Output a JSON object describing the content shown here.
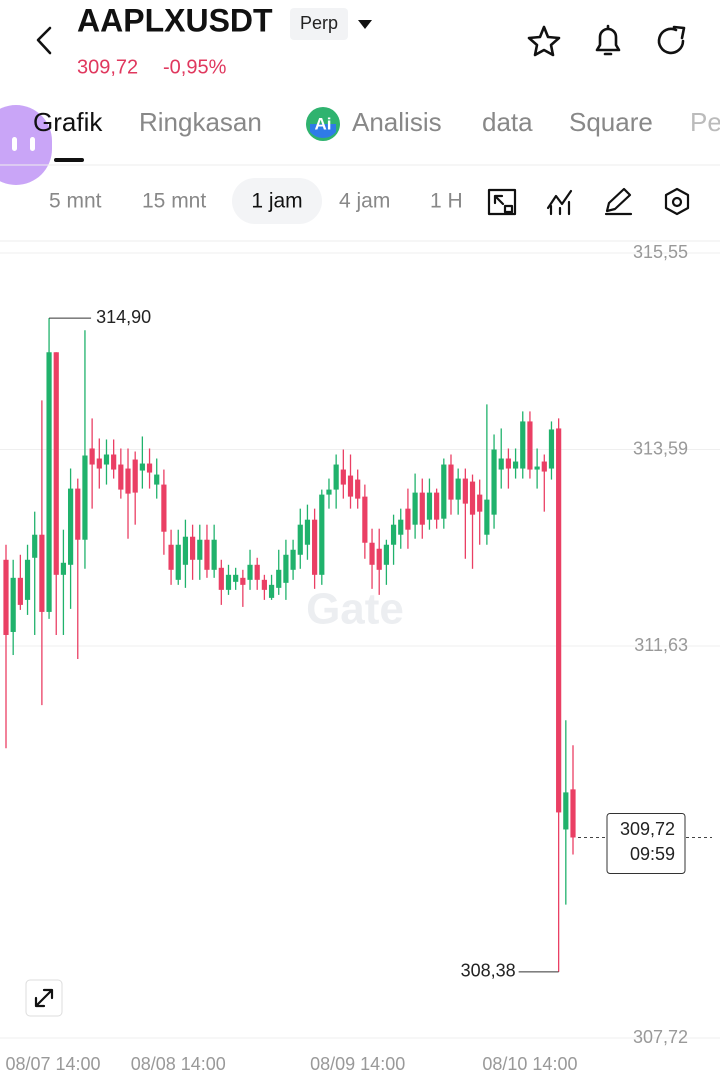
{
  "header": {
    "symbol": "AAPLXUSDT",
    "badge": "Perp",
    "price": "309,72",
    "change": "-0,95%"
  },
  "tabs": [
    "Grafik",
    "Ringkasan",
    "Analisis",
    "data",
    "Square",
    "Pe"
  ],
  "intervals": [
    "5 mnt",
    "15 mnt",
    "1 jam",
    "4 jam",
    "1 H"
  ],
  "chart_data": {
    "type": "candlestick",
    "watermark": "Gate",
    "up_color": "#20b26c",
    "down_color": "#ea3f64",
    "categories": [
      "08/07 14:00",
      null,
      null,
      null,
      null,
      null,
      null,
      null,
      null,
      null,
      null,
      null,
      null,
      null,
      null,
      null,
      null,
      null,
      null,
      null,
      null,
      null,
      null,
      null,
      "08/08 14:00",
      null,
      null,
      null,
      null,
      null,
      null,
      null,
      null,
      null,
      null,
      null,
      null,
      null,
      null,
      null,
      null,
      null,
      null,
      null,
      null,
      null,
      null,
      null,
      null,
      "08/09 14:00",
      null,
      null,
      null,
      null,
      null,
      null,
      null,
      null,
      null,
      null,
      null,
      null,
      null,
      null,
      null,
      null,
      null,
      null,
      null,
      null,
      null,
      null,
      null,
      "08/10 14:00",
      null,
      null,
      null,
      null,
      null,
      null
    ],
    "open": [
      312.49,
      311.77,
      312.31,
      312.09,
      312.51,
      312.74,
      311.97,
      314.56,
      312.34,
      312.44,
      313.2,
      312.69,
      313.6,
      313.5,
      313.44,
      313.54,
      313.44,
      313.4,
      313.49,
      313.38,
      313.45,
      313.24,
      313.24,
      312.64,
      312.29,
      312.44,
      312.72,
      312.49,
      312.69,
      312.39,
      312.41,
      312.19,
      312.27,
      312.31,
      312.29,
      312.44,
      312.29,
      312.11,
      312.21,
      312.26,
      312.39,
      312.54,
      312.64,
      312.89,
      312.34,
      313.14,
      313.19,
      313.39,
      313.33,
      313.29,
      313.12,
      312.66,
      312.6,
      312.44,
      312.64,
      312.74,
      313.0,
      312.84,
      313.16,
      312.89,
      313.16,
      312.9,
      313.44,
      313.09,
      313.3,
      313.27,
      313.14,
      312.74,
      312.94,
      313.39,
      313.5,
      313.4,
      313.4,
      313.87,
      313.39,
      313.47,
      313.4,
      313.8,
      309.8,
      310.2
    ],
    "high": [
      312.64,
      312.49,
      312.54,
      312.64,
      312.97,
      314.08,
      314.9,
      314.56,
      312.79,
      313.4,
      313.3,
      314.78,
      313.9,
      313.7,
      313.69,
      313.69,
      313.6,
      313.6,
      313.57,
      313.72,
      313.6,
      313.5,
      313.39,
      312.79,
      312.79,
      312.89,
      312.84,
      312.84,
      312.84,
      312.84,
      312.49,
      312.44,
      312.41,
      312.39,
      312.59,
      312.51,
      312.34,
      312.34,
      312.59,
      312.69,
      312.69,
      313.0,
      313.04,
      313.0,
      313.19,
      313.3,
      313.54,
      313.59,
      313.54,
      313.39,
      313.24,
      312.8,
      312.8,
      312.69,
      312.94,
      313.0,
      313.2,
      313.35,
      313.3,
      313.3,
      313.2,
      313.5,
      313.54,
      313.4,
      313.4,
      313.34,
      313.29,
      314.04,
      313.74,
      313.8,
      313.6,
      313.6,
      313.97,
      313.97,
      313.6,
      313.54,
      313.87,
      313.9,
      310.89,
      310.64
    ],
    "low": [
      310.61,
      311.54,
      311.99,
      311.94,
      311.74,
      311.04,
      311.9,
      311.74,
      311.74,
      312.0,
      311.5,
      312.4,
      313.0,
      313.2,
      313.24,
      313.3,
      313.1,
      312.7,
      312.84,
      313.2,
      313.2,
      313.1,
      312.54,
      312.24,
      312.24,
      312.21,
      312.29,
      312.29,
      312.31,
      312.31,
      312.04,
      312.14,
      312.19,
      312.02,
      312.19,
      312.19,
      312.09,
      312.09,
      312.14,
      312.09,
      312.29,
      312.4,
      312.49,
      312.2,
      312.24,
      313.0,
      313.0,
      313.1,
      313.0,
      313.0,
      312.5,
      312.2,
      312.14,
      312.24,
      312.44,
      312.6,
      312.6,
      312.7,
      312.7,
      312.79,
      312.8,
      312.8,
      312.94,
      312.94,
      312.5,
      312.4,
      312.64,
      312.64,
      312.8,
      313.2,
      313.2,
      313.3,
      313.3,
      313.3,
      313.2,
      312.97,
      313.29,
      308.38,
      309.05,
      309.55
    ],
    "close": [
      311.74,
      312.31,
      312.04,
      312.49,
      312.74,
      311.97,
      314.56,
      312.34,
      312.46,
      313.2,
      312.69,
      313.53,
      313.44,
      313.4,
      313.54,
      313.39,
      313.19,
      313.15,
      313.16,
      313.45,
      313.36,
      313.34,
      312.77,
      312.39,
      312.64,
      312.72,
      312.49,
      312.69,
      312.39,
      312.69,
      312.19,
      312.34,
      312.34,
      312.24,
      312.44,
      312.29,
      312.19,
      312.24,
      312.39,
      312.54,
      312.59,
      312.84,
      312.89,
      312.34,
      313.14,
      313.19,
      313.44,
      313.24,
      313.12,
      313.1,
      312.66,
      312.44,
      312.39,
      312.64,
      312.84,
      312.89,
      312.79,
      313.16,
      312.84,
      313.16,
      312.89,
      313.44,
      313.09,
      313.3,
      313.05,
      312.94,
      312.97,
      313.09,
      313.59,
      313.5,
      313.4,
      313.47,
      313.87,
      313.39,
      313.42,
      313.37,
      313.79,
      309.97,
      310.17,
      309.72
    ],
    "ylim": [
      307.72,
      315.55
    ],
    "yticks": [
      {
        "value": 315.55,
        "label": "315,55"
      },
      {
        "value": 313.59,
        "label": "313,59"
      },
      {
        "value": 311.63,
        "label": "311,63"
      },
      {
        "value": 307.72,
        "label": "307,72"
      }
    ],
    "grid": true,
    "high_label": {
      "value": 314.9,
      "label": "314,90"
    },
    "low_label": {
      "value": 308.38,
      "label": "308,38"
    },
    "last_price": {
      "value": 309.72,
      "label": "309,72"
    },
    "countdown": "09:59"
  }
}
